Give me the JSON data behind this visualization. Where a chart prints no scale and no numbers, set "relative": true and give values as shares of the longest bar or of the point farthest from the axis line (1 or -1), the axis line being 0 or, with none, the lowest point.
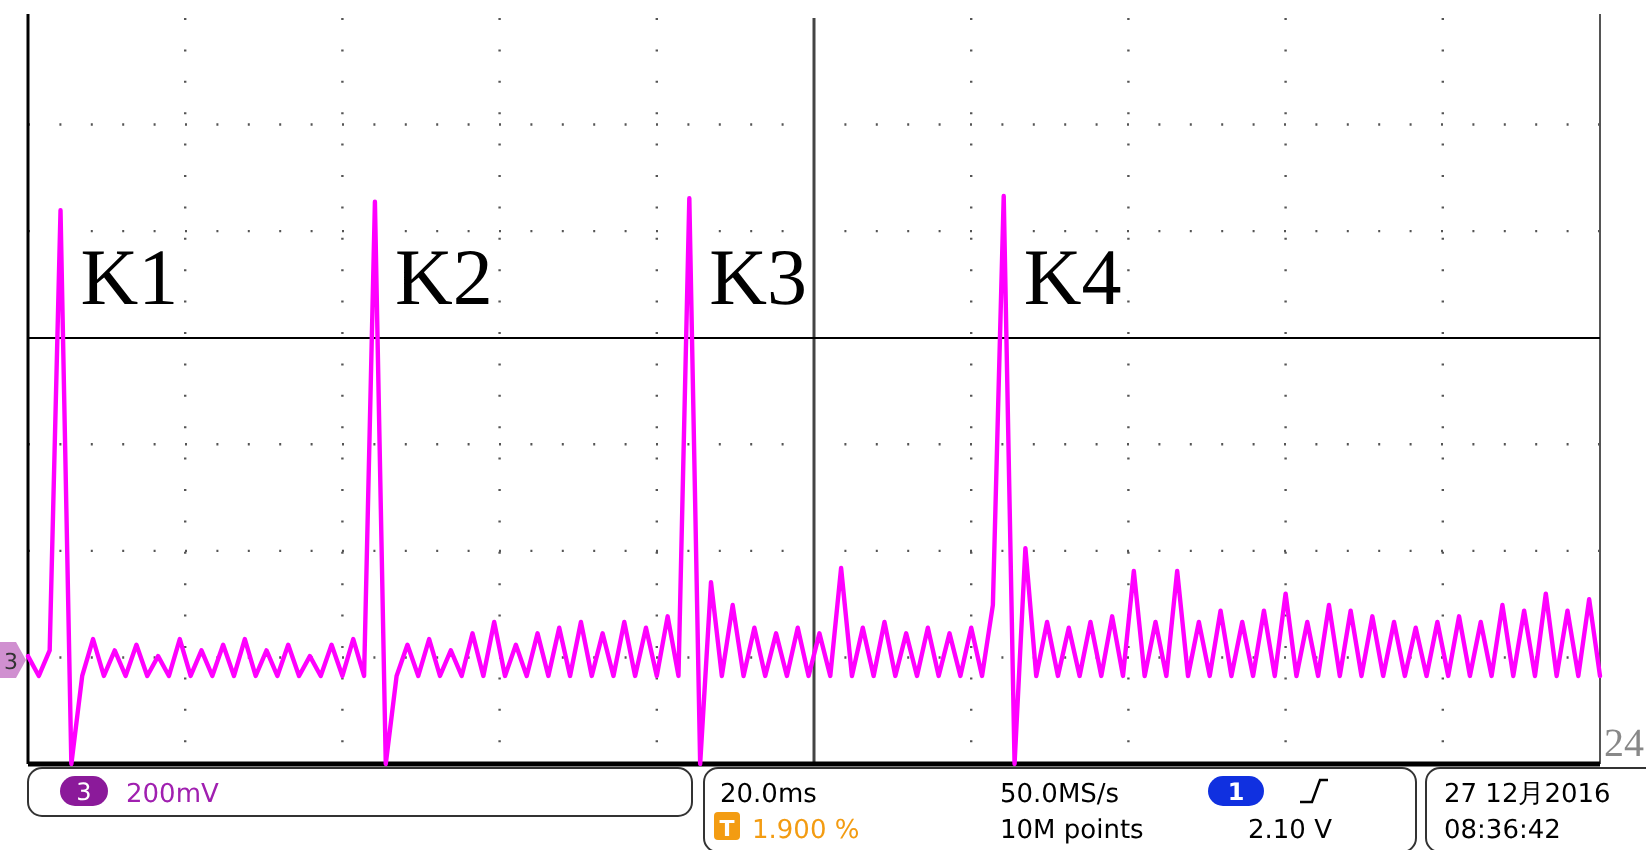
{
  "chart_data": {
    "type": "line",
    "relative": true,
    "grid": true,
    "color": "#ff00ff",
    "categories": [
      null,
      null,
      null,
      null,
      null,
      null,
      null,
      null,
      null,
      null,
      null,
      null,
      null,
      null,
      null,
      null,
      null,
      null,
      null,
      null,
      null,
      null,
      null,
      null,
      null,
      null,
      null,
      null,
      null,
      null,
      null,
      null,
      null,
      null,
      null,
      null,
      null,
      null,
      null,
      null,
      null,
      null,
      null,
      null,
      null,
      null,
      null,
      null,
      null,
      null,
      null,
      null,
      null,
      null,
      null,
      null,
      null,
      null,
      null,
      null,
      null,
      null,
      null,
      null,
      null,
      null,
      null,
      null,
      null,
      null,
      null,
      null,
      null,
      null,
      null,
      null,
      null,
      null,
      null,
      null,
      null,
      null,
      null,
      null,
      null,
      null,
      null,
      null,
      null,
      null,
      null,
      null,
      null,
      null,
      null,
      null,
      null,
      null,
      null,
      null,
      null,
      null,
      null,
      null,
      null,
      null,
      null,
      null,
      null,
      null,
      null,
      null,
      null,
      null,
      null,
      null,
      null,
      null,
      null,
      null,
      null,
      null,
      null,
      null,
      null,
      null,
      null,
      null,
      null,
      null,
      null,
      null,
      null,
      null,
      null,
      null,
      null,
      null,
      null,
      null,
      null,
      null,
      null,
      null,
      null,
      null
    ],
    "values": [
      0.19,
      0.155,
      0.2,
      0.975,
      0,
      0.155,
      0.22,
      0.155,
      0.2,
      0.155,
      0.21,
      0.155,
      0.19,
      0.155,
      0.22,
      0.155,
      0.2,
      0.155,
      0.21,
      0.155,
      0.22,
      0.155,
      0.2,
      0.155,
      0.21,
      0.155,
      0.19,
      0.155,
      0.21,
      0.155,
      0.22,
      0.155,
      0.99,
      0,
      0.155,
      0.21,
      0.155,
      0.22,
      0.155,
      0.2,
      0.155,
      0.23,
      0.155,
      0.25,
      0.155,
      0.21,
      0.155,
      0.23,
      0.155,
      0.24,
      0.155,
      0.25,
      0.155,
      0.23,
      0.155,
      0.25,
      0.155,
      0.24,
      0.155,
      0.26,
      0.155,
      0.996,
      0,
      0.32,
      0.155,
      0.28,
      0.155,
      0.24,
      0.155,
      0.23,
      0.155,
      0.24,
      0.155,
      0.23,
      0.155,
      0.345,
      0.155,
      0.24,
      0.155,
      0.25,
      0.155,
      0.23,
      0.155,
      0.24,
      0.155,
      0.23,
      0.155,
      0.24,
      0.155,
      0.28,
      1,
      0,
      0.38,
      0.155,
      0.25,
      0.155,
      0.24,
      0.155,
      0.25,
      0.155,
      0.26,
      0.155,
      0.34,
      0.155,
      0.25,
      0.155,
      0.34,
      0.155,
      0.25,
      0.155,
      0.27,
      0.155,
      0.25,
      0.155,
      0.27,
      0.155,
      0.3,
      0.155,
      0.25,
      0.155,
      0.28,
      0.155,
      0.27,
      0.155,
      0.26,
      0.155,
      0.25,
      0.155,
      0.24,
      0.155,
      0.25,
      0.155,
      0.26,
      0.155,
      0.25,
      0.155,
      0.28,
      0.155,
      0.27,
      0.155,
      0.3,
      0.155,
      0.27,
      0.155,
      0.29,
      0.155
    ],
    "ref_lines": [
      {
        "axis": "y",
        "value": 0.75,
        "color": "#000000"
      }
    ],
    "annotations": [
      "K1",
      "K2",
      "K3",
      "K4",
      "3",
      "24",
      "3",
      "200mV",
      "20.0ms",
      "50.0MS/s",
      "1",
      "27 12月2016",
      "T",
      "1.900 %",
      "10M points",
      "2.10 V",
      "08:36:42"
    ]
  }
}
